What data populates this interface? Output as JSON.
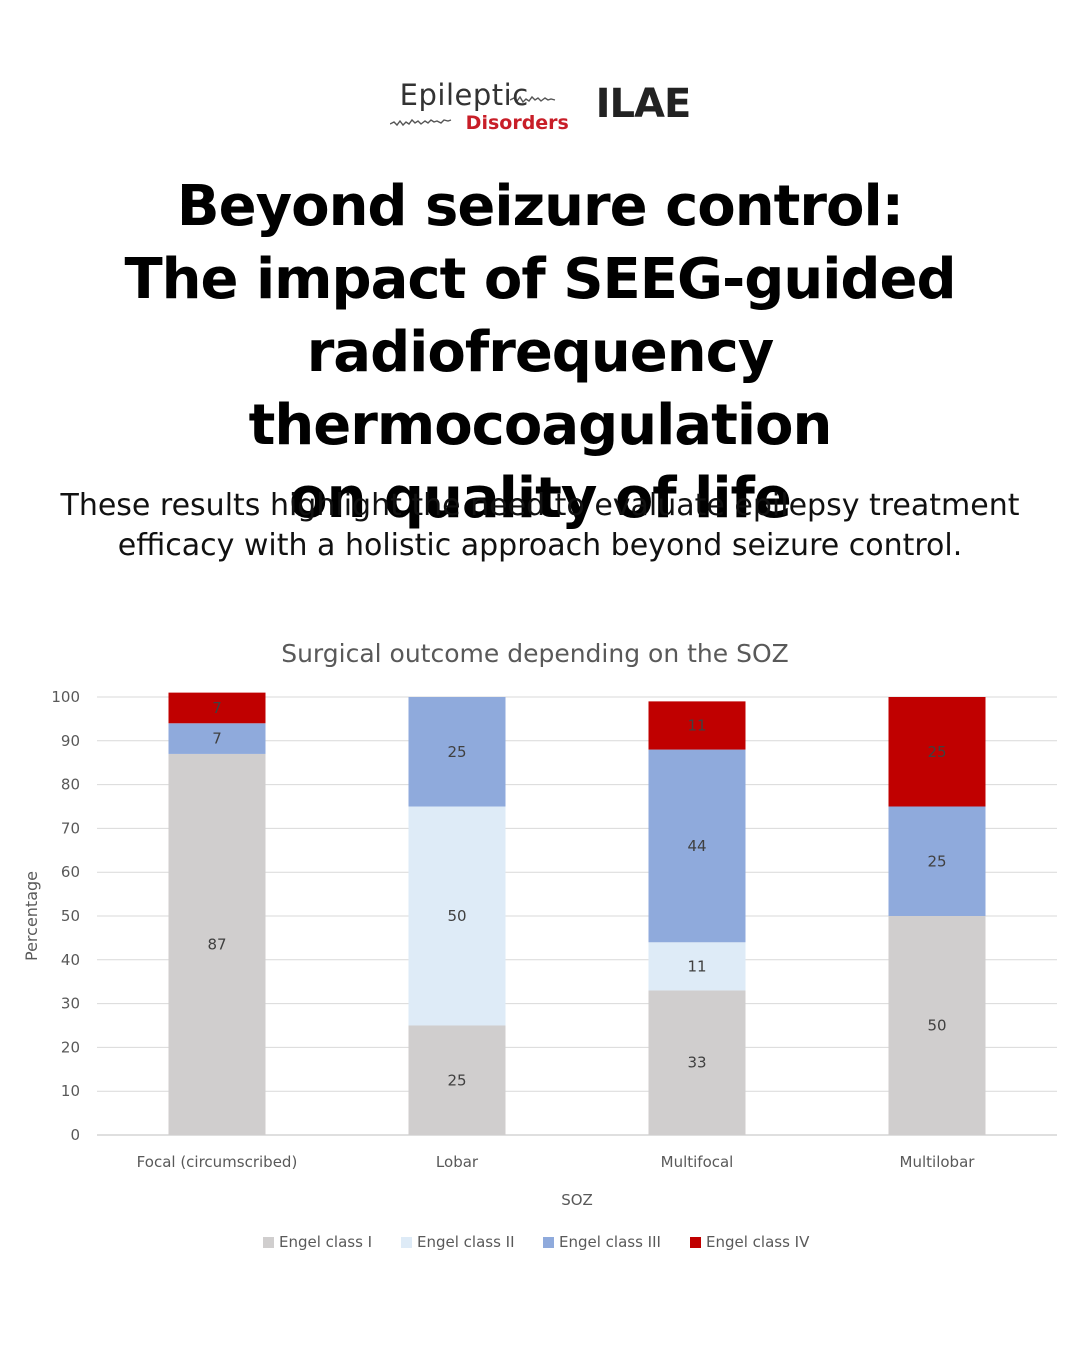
{
  "header": {
    "logo_epileptic": "Epileptic",
    "logo_disorders": "Disorders",
    "logo_ilae": "ILAE",
    "title_lines": [
      "Beyond seizure control:",
      "The impact of SEEG-guided",
      "radiofrequency thermocoagulation",
      "on quality of life"
    ],
    "subtitle_lines": [
      "These results highlight the need to evaluate epilepsy treatment",
      "efficacy with a holistic approach beyond seizure control."
    ]
  },
  "chart_data": {
    "type": "bar",
    "stacked": true,
    "title": "Surgical outcome depending on the SOZ",
    "xlabel": "SOZ",
    "ylabel": "Percentage",
    "ylim": [
      0,
      100
    ],
    "yticks": [
      0,
      10,
      20,
      30,
      40,
      50,
      60,
      70,
      80,
      90,
      100
    ],
    "grid": true,
    "legend_position": "bottom",
    "categories": [
      "Focal (circumscribed)",
      "Lobar",
      "Multifocal",
      "Multilobar"
    ],
    "series": [
      {
        "name": "Engel class I",
        "color": "#d0cece",
        "values": [
          87,
          25,
          33,
          50
        ],
        "labels": [
          "87",
          "25",
          "33",
          "50"
        ]
      },
      {
        "name": "Engel class II",
        "color": "#deebf7",
        "values": [
          0,
          50,
          11,
          0
        ],
        "labels": [
          "",
          "50",
          "11",
          ""
        ]
      },
      {
        "name": "Engel class III",
        "color": "#8faadc",
        "values": [
          7,
          25,
          44,
          25
        ],
        "labels": [
          "7",
          "25",
          "44",
          "25"
        ]
      },
      {
        "name": "Engel class IV",
        "color": "#c00000",
        "values": [
          7,
          0,
          11,
          25
        ],
        "labels": [
          "7",
          "",
          "11",
          "25"
        ]
      }
    ]
  }
}
